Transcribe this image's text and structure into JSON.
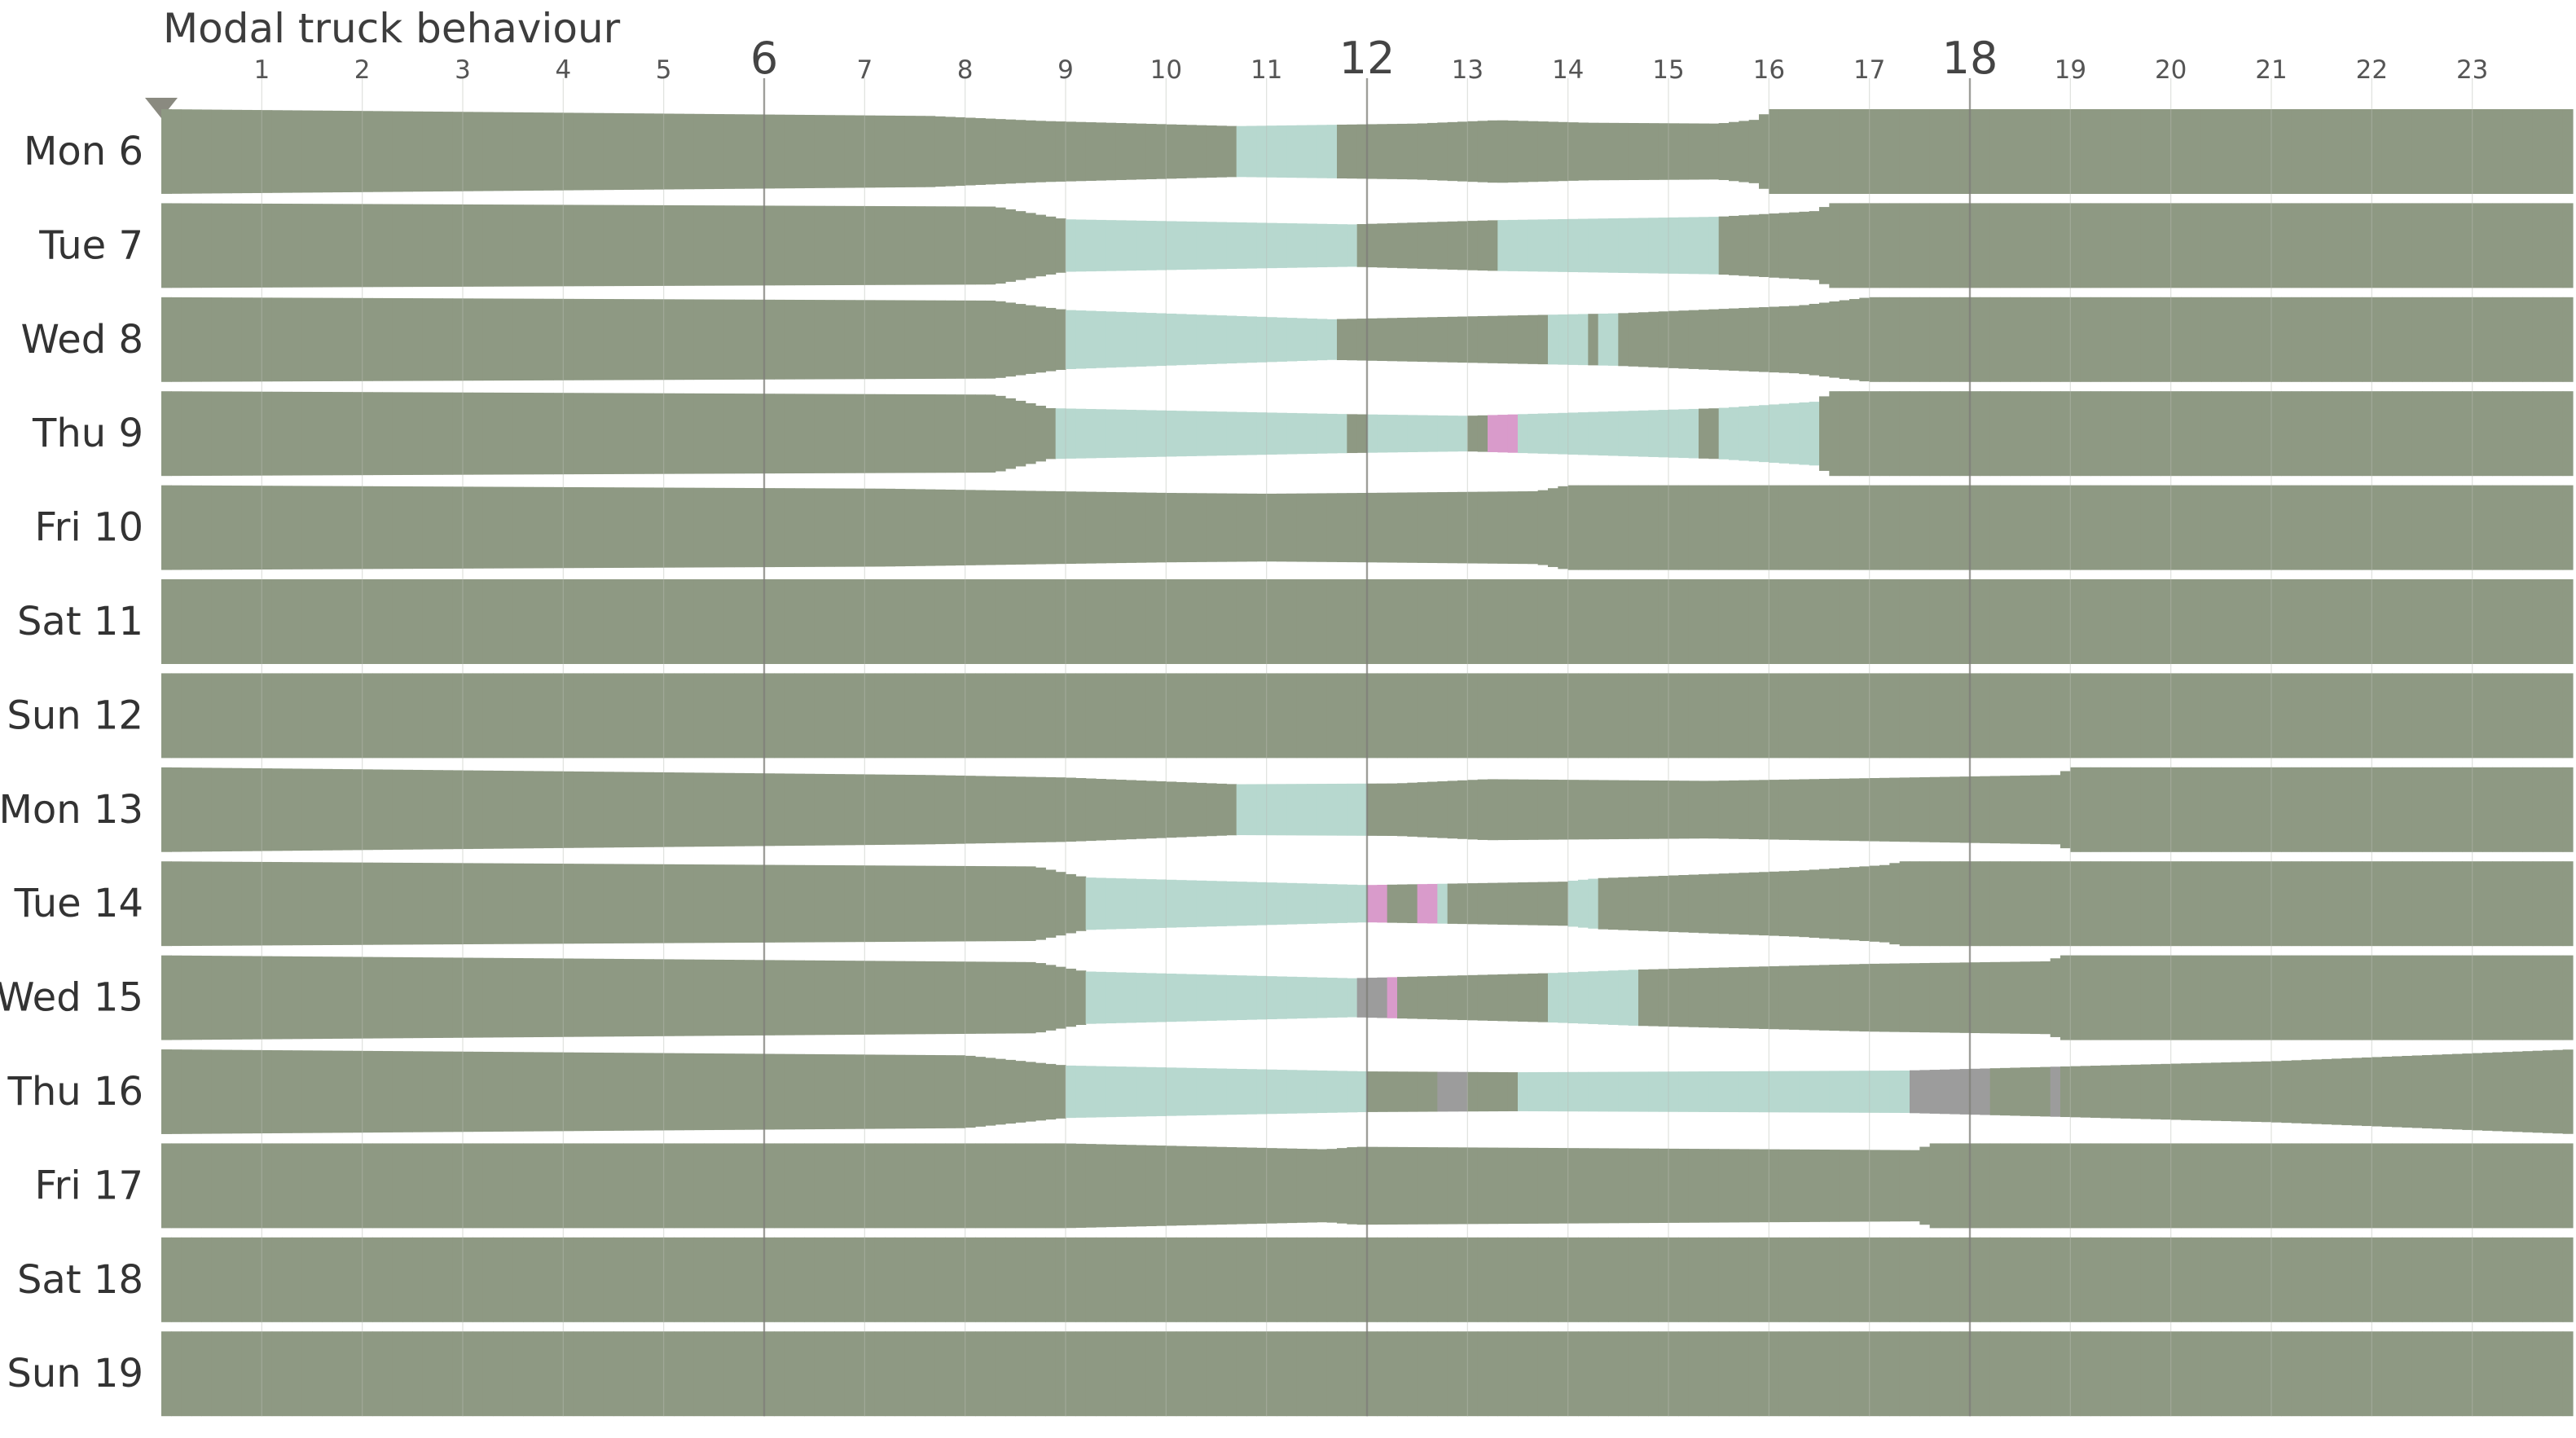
{
  "chart_data": {
    "type": "heatmap",
    "title": "Modal truck behaviour",
    "x_ticks": [
      {
        "hour": 1,
        "label": "1"
      },
      {
        "hour": 2,
        "label": "2"
      },
      {
        "hour": 3,
        "label": "3"
      },
      {
        "hour": 4,
        "label": "4"
      },
      {
        "hour": 5,
        "label": "5"
      },
      {
        "hour": 6,
        "label": "6",
        "major": true
      },
      {
        "hour": 7,
        "label": "7"
      },
      {
        "hour": 8,
        "label": "8"
      },
      {
        "hour": 9,
        "label": "9"
      },
      {
        "hour": 10,
        "label": "10"
      },
      {
        "hour": 11,
        "label": "11"
      },
      {
        "hour": 12,
        "label": "12",
        "major": true
      },
      {
        "hour": 13,
        "label": "13"
      },
      {
        "hour": 14,
        "label": "14"
      },
      {
        "hour": 15,
        "label": "15"
      },
      {
        "hour": 16,
        "label": "16"
      },
      {
        "hour": 17,
        "label": "17"
      },
      {
        "hour": 18,
        "label": "18",
        "major": true
      },
      {
        "hour": 19,
        "label": "19"
      },
      {
        "hour": 20,
        "label": "20"
      },
      {
        "hour": 21,
        "label": "21"
      },
      {
        "hour": 22,
        "label": "22"
      },
      {
        "hour": 23,
        "label": "23"
      }
    ],
    "xlim": [
      0,
      24
    ],
    "colors": {
      "parked": "#8e9983",
      "moving": "#b7d8cf",
      "pink": "#d99bcb",
      "grey": "#9c9c9c"
    },
    "days": [
      {
        "label": "Mon 6",
        "segments": [
          {
            "start": 0,
            "end": 10.7,
            "state": "parked"
          },
          {
            "start": 10.7,
            "end": 11.65,
            "state": "moving"
          },
          {
            "start": 11.65,
            "end": 24,
            "state": "parked"
          }
        ],
        "profile": [
          [
            7.65,
            0.84
          ],
          [
            8.8,
            0.72
          ],
          [
            10.7,
            0.6
          ],
          [
            12.5,
            0.66
          ],
          [
            13.3,
            0.74
          ],
          [
            14.2,
            0.68
          ],
          [
            15.5,
            0.66
          ],
          [
            15.9,
            0.76
          ],
          [
            16,
            1.0
          ],
          [
            24,
            1.0
          ]
        ]
      },
      {
        "label": "Tue 7",
        "segments": [
          {
            "start": 0,
            "end": 9.0,
            "state": "parked"
          },
          {
            "start": 9.0,
            "end": 11.85,
            "state": "moving"
          },
          {
            "start": 11.85,
            "end": 13.3,
            "state": "parked"
          },
          {
            "start": 13.3,
            "end": 15.5,
            "state": "moving"
          },
          {
            "start": 15.5,
            "end": 24,
            "state": "parked"
          }
        ],
        "profile": [
          [
            8.3,
            0.92
          ],
          [
            9.0,
            0.62
          ],
          [
            11.85,
            0.5
          ],
          [
            13.3,
            0.6
          ],
          [
            15.5,
            0.68
          ],
          [
            16.5,
            0.82
          ],
          [
            16.6,
            1.0
          ],
          [
            24,
            1.0
          ]
        ]
      },
      {
        "label": "Wed 8",
        "segments": [
          {
            "start": 0,
            "end": 9.0,
            "state": "parked"
          },
          {
            "start": 9.0,
            "end": 11.65,
            "state": "moving"
          },
          {
            "start": 11.65,
            "end": 13.8,
            "state": "parked"
          },
          {
            "start": 13.8,
            "end": 14.15,
            "state": "moving"
          },
          {
            "start": 14.15,
            "end": 14.3,
            "state": "parked"
          },
          {
            "start": 14.3,
            "end": 14.5,
            "state": "moving"
          },
          {
            "start": 14.5,
            "end": 24,
            "state": "parked"
          }
        ],
        "profile": [
          [
            8.3,
            0.92
          ],
          [
            9.0,
            0.7
          ],
          [
            11.65,
            0.48
          ],
          [
            14.5,
            0.62
          ],
          [
            16.3,
            0.8
          ],
          [
            17.0,
            1.0
          ],
          [
            24,
            1.0
          ]
        ]
      },
      {
        "label": "Thu 9",
        "segments": [
          {
            "start": 0,
            "end": 8.85,
            "state": "parked"
          },
          {
            "start": 8.85,
            "end": 11.8,
            "state": "moving"
          },
          {
            "start": 11.8,
            "end": 11.95,
            "state": "parked"
          },
          {
            "start": 11.95,
            "end": 13.0,
            "state": "moving"
          },
          {
            "start": 13.0,
            "end": 13.15,
            "state": "parked"
          },
          {
            "start": 13.15,
            "end": 13.5,
            "state": "pink"
          },
          {
            "start": 13.5,
            "end": 15.3,
            "state": "moving"
          },
          {
            "start": 15.3,
            "end": 15.5,
            "state": "parked"
          },
          {
            "start": 15.5,
            "end": 16.5,
            "state": "moving"
          },
          {
            "start": 16.5,
            "end": 24,
            "state": "parked"
          }
        ],
        "profile": [
          [
            8.3,
            0.92
          ],
          [
            8.85,
            0.6
          ],
          [
            11.8,
            0.46
          ],
          [
            13.0,
            0.42
          ],
          [
            15.5,
            0.6
          ],
          [
            16.5,
            0.76
          ],
          [
            16.6,
            1.0
          ],
          [
            24,
            1.0
          ]
        ]
      },
      {
        "label": "Fri 10",
        "segments": [
          {
            "start": 0,
            "end": 24,
            "state": "parked"
          }
        ],
        "profile": [
          [
            7.2,
            0.92
          ],
          [
            10.0,
            0.82
          ],
          [
            11.0,
            0.8
          ],
          [
            12.0,
            0.82
          ],
          [
            13.7,
            0.86
          ],
          [
            14.0,
            1.0
          ],
          [
            24,
            1.0
          ]
        ]
      },
      {
        "label": "Sat 11",
        "segments": [
          {
            "start": 0,
            "end": 24,
            "state": "parked"
          }
        ],
        "profile": [
          [
            24,
            1.0
          ]
        ]
      },
      {
        "label": "Sun 12",
        "segments": [
          {
            "start": 0,
            "end": 24,
            "state": "parked"
          }
        ],
        "profile": [
          [
            24,
            1.0
          ]
        ]
      },
      {
        "label": "Mon 13",
        "segments": [
          {
            "start": 0,
            "end": 10.7,
            "state": "moving-prefix-parked"
          },
          {
            "start": 10.7,
            "end": 12.0,
            "state": "moving"
          },
          {
            "start": 12.0,
            "end": 24,
            "state": "parked"
          }
        ],
        "profile": [
          [
            7.6,
            0.82
          ],
          [
            9.0,
            0.76
          ],
          [
            10.7,
            0.6
          ],
          [
            12.3,
            0.62
          ],
          [
            13.2,
            0.72
          ],
          [
            15.4,
            0.68
          ],
          [
            18.9,
            0.82
          ],
          [
            19.0,
            1.0
          ],
          [
            24,
            1.0
          ]
        ]
      },
      {
        "label": "Tue 14",
        "segments": [
          {
            "start": 0,
            "end": 9.2,
            "state": "parked"
          },
          {
            "start": 9.2,
            "end": 12.0,
            "state": "moving"
          },
          {
            "start": 12.0,
            "end": 12.15,
            "state": "pink"
          },
          {
            "start": 12.15,
            "end": 12.5,
            "state": "parked"
          },
          {
            "start": 12.5,
            "end": 12.65,
            "state": "pink"
          },
          {
            "start": 12.65,
            "end": 12.75,
            "state": "moving"
          },
          {
            "start": 12.75,
            "end": 13.95,
            "state": "parked"
          },
          {
            "start": 13.95,
            "end": 14.3,
            "state": "moving"
          },
          {
            "start": 14.3,
            "end": 24,
            "state": "parked"
          }
        ],
        "profile": [
          [
            8.7,
            0.88
          ],
          [
            9.2,
            0.62
          ],
          [
            12.0,
            0.44
          ],
          [
            13.95,
            0.52
          ],
          [
            14.3,
            0.6
          ],
          [
            16.3,
            0.78
          ],
          [
            17.2,
            0.92
          ],
          [
            17.3,
            1.0
          ],
          [
            24,
            1.0
          ]
        ]
      },
      {
        "label": "Wed 15",
        "segments": [
          {
            "start": 0,
            "end": 9.2,
            "state": "parked"
          },
          {
            "start": 9.2,
            "end": 11.85,
            "state": "moving"
          },
          {
            "start": 11.85,
            "end": 12.15,
            "state": "grey"
          },
          {
            "start": 12.15,
            "end": 12.3,
            "state": "pink"
          },
          {
            "start": 12.3,
            "end": 13.8,
            "state": "parked"
          },
          {
            "start": 13.8,
            "end": 14.65,
            "state": "moving"
          },
          {
            "start": 14.65,
            "end": 24,
            "state": "parked"
          }
        ],
        "profile": [
          [
            8.7,
            0.84
          ],
          [
            9.2,
            0.62
          ],
          [
            11.85,
            0.46
          ],
          [
            13.8,
            0.58
          ],
          [
            14.65,
            0.66
          ],
          [
            17.0,
            0.8
          ],
          [
            18.8,
            0.86
          ],
          [
            18.9,
            1.0
          ],
          [
            24,
            1.0
          ]
        ]
      },
      {
        "label": "Thu 16",
        "segments": [
          {
            "start": 0,
            "end": 9.0,
            "state": "parked"
          },
          {
            "start": 9.0,
            "end": 12.0,
            "state": "moving"
          },
          {
            "start": 12.0,
            "end": 12.65,
            "state": "parked"
          },
          {
            "start": 12.65,
            "end": 13.0,
            "state": "grey"
          },
          {
            "start": 13.0,
            "end": 13.5,
            "state": "parked"
          },
          {
            "start": 13.5,
            "end": 17.35,
            "state": "moving"
          },
          {
            "start": 17.35,
            "end": 18.15,
            "state": "grey"
          },
          {
            "start": 18.15,
            "end": 18.8,
            "state": "parked"
          },
          {
            "start": 18.8,
            "end": 18.95,
            "state": "grey"
          },
          {
            "start": 18.95,
            "end": 24,
            "state": "parked"
          }
        ],
        "profile": [
          [
            8.0,
            0.86
          ],
          [
            9.0,
            0.62
          ],
          [
            12.0,
            0.48
          ],
          [
            13.5,
            0.46
          ],
          [
            17.35,
            0.5
          ],
          [
            19.0,
            0.6
          ],
          [
            21.0,
            0.72
          ],
          [
            24,
            1.0
          ]
        ]
      },
      {
        "label": "Fri 17",
        "segments": [
          {
            "start": 0,
            "end": 24,
            "state": "parked"
          }
        ],
        "profile": [
          [
            9.0,
            1.0
          ],
          [
            11.6,
            0.86
          ],
          [
            11.9,
            0.92
          ],
          [
            17.5,
            0.84
          ],
          [
            17.6,
            1.0
          ],
          [
            24,
            1.0
          ]
        ]
      },
      {
        "label": "Sat 18",
        "segments": [
          {
            "start": 0,
            "end": 24,
            "state": "parked"
          }
        ],
        "profile": [
          [
            24,
            1.0
          ]
        ]
      },
      {
        "label": "Sun 19",
        "segments": [
          {
            "start": 0,
            "end": 24,
            "state": "parked"
          }
        ],
        "profile": [
          [
            24,
            1.0
          ]
        ]
      }
    ]
  }
}
